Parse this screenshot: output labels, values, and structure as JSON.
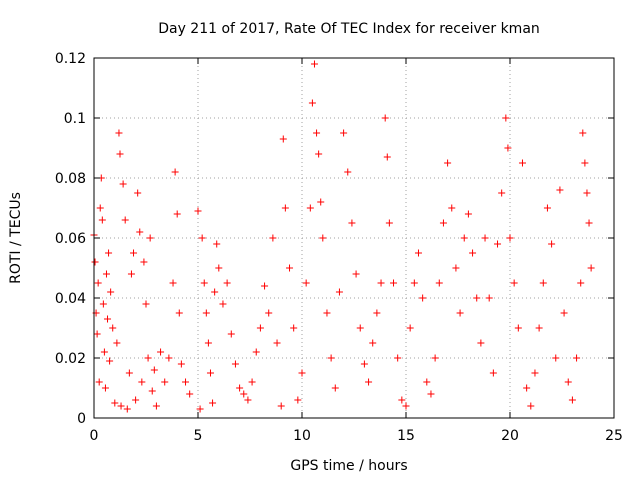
{
  "chart_data": {
    "type": "scatter",
    "title": "Day 211 of 2017, Rate Of TEC Index for receiver kman",
    "xlabel": "GPS time / hours",
    "ylabel": "ROTI / TECUs",
    "xlim": [
      0,
      25
    ],
    "ylim": [
      0,
      0.12
    ],
    "xticks": [
      0,
      5,
      10,
      15,
      20,
      25
    ],
    "yticks": [
      0,
      0.02,
      0.04,
      0.06,
      0.08,
      0.1,
      0.12
    ],
    "xtick_labels": [
      "0",
      "5",
      "10",
      "15",
      "20",
      "25"
    ],
    "ytick_labels": [
      "0",
      "0.02",
      "0.04",
      "0.06",
      "0.08",
      "0.1",
      "0.12"
    ],
    "grid": true,
    "marker": "+",
    "color": "#ff0000",
    "series": [
      {
        "points": [
          [
            0.0,
            0.061
          ],
          [
            0.05,
            0.052
          ],
          [
            0.1,
            0.035
          ],
          [
            0.15,
            0.028
          ],
          [
            0.2,
            0.045
          ],
          [
            0.25,
            0.012
          ],
          [
            0.3,
            0.07
          ],
          [
            0.35,
            0.08
          ],
          [
            0.4,
            0.066
          ],
          [
            0.45,
            0.038
          ],
          [
            0.5,
            0.022
          ],
          [
            0.55,
            0.01
          ],
          [
            0.6,
            0.048
          ],
          [
            0.65,
            0.033
          ],
          [
            0.7,
            0.055
          ],
          [
            0.75,
            0.019
          ],
          [
            0.8,
            0.042
          ],
          [
            0.9,
            0.03
          ],
          [
            1.0,
            0.005
          ],
          [
            1.1,
            0.025
          ],
          [
            1.2,
            0.095
          ],
          [
            1.25,
            0.088
          ],
          [
            1.3,
            0.004
          ],
          [
            1.4,
            0.078
          ],
          [
            1.5,
            0.066
          ],
          [
            1.6,
            0.003
          ],
          [
            1.7,
            0.015
          ],
          [
            1.8,
            0.048
          ],
          [
            1.9,
            0.055
          ],
          [
            2.0,
            0.006
          ],
          [
            2.1,
            0.075
          ],
          [
            2.2,
            0.062
          ],
          [
            2.3,
            0.012
          ],
          [
            2.4,
            0.052
          ],
          [
            2.5,
            0.038
          ],
          [
            2.6,
            0.02
          ],
          [
            2.7,
            0.06
          ],
          [
            2.8,
            0.009
          ],
          [
            2.9,
            0.016
          ],
          [
            3.0,
            0.004
          ],
          [
            3.2,
            0.022
          ],
          [
            3.4,
            0.012
          ],
          [
            3.6,
            0.02
          ],
          [
            3.8,
            0.045
          ],
          [
            3.9,
            0.082
          ],
          [
            4.0,
            0.068
          ],
          [
            4.1,
            0.035
          ],
          [
            4.2,
            0.018
          ],
          [
            4.4,
            0.012
          ],
          [
            4.6,
            0.008
          ],
          [
            5.0,
            0.069
          ],
          [
            5.1,
            0.003
          ],
          [
            5.2,
            0.06
          ],
          [
            5.3,
            0.045
          ],
          [
            5.4,
            0.035
          ],
          [
            5.5,
            0.025
          ],
          [
            5.6,
            0.015
          ],
          [
            5.7,
            0.005
          ],
          [
            5.8,
            0.042
          ],
          [
            5.9,
            0.058
          ],
          [
            6.0,
            0.05
          ],
          [
            6.2,
            0.038
          ],
          [
            6.4,
            0.045
          ],
          [
            6.6,
            0.028
          ],
          [
            6.8,
            0.018
          ],
          [
            7.0,
            0.01
          ],
          [
            7.2,
            0.008
          ],
          [
            7.4,
            0.006
          ],
          [
            7.6,
            0.012
          ],
          [
            7.8,
            0.022
          ],
          [
            8.0,
            0.03
          ],
          [
            8.2,
            0.044
          ],
          [
            8.4,
            0.035
          ],
          [
            8.6,
            0.06
          ],
          [
            8.8,
            0.025
          ],
          [
            9.0,
            0.004
          ],
          [
            9.1,
            0.093
          ],
          [
            9.2,
            0.07
          ],
          [
            9.4,
            0.05
          ],
          [
            9.6,
            0.03
          ],
          [
            9.8,
            0.006
          ],
          [
            10.0,
            0.015
          ],
          [
            10.2,
            0.045
          ],
          [
            10.4,
            0.07
          ],
          [
            10.5,
            0.105
          ],
          [
            10.6,
            0.118
          ],
          [
            10.7,
            0.095
          ],
          [
            10.8,
            0.088
          ],
          [
            10.9,
            0.072
          ],
          [
            11.0,
            0.06
          ],
          [
            11.2,
            0.035
          ],
          [
            11.4,
            0.02
          ],
          [
            11.6,
            0.01
          ],
          [
            11.8,
            0.042
          ],
          [
            12.0,
            0.095
          ],
          [
            12.2,
            0.082
          ],
          [
            12.4,
            0.065
          ],
          [
            12.6,
            0.048
          ],
          [
            12.8,
            0.03
          ],
          [
            13.0,
            0.018
          ],
          [
            13.2,
            0.012
          ],
          [
            13.4,
            0.025
          ],
          [
            13.6,
            0.035
          ],
          [
            13.8,
            0.045
          ],
          [
            14.0,
            0.1
          ],
          [
            14.1,
            0.087
          ],
          [
            14.2,
            0.065
          ],
          [
            14.4,
            0.045
          ],
          [
            14.6,
            0.02
          ],
          [
            14.8,
            0.006
          ],
          [
            15.0,
            0.004
          ],
          [
            15.2,
            0.03
          ],
          [
            15.4,
            0.045
          ],
          [
            15.6,
            0.055
          ],
          [
            15.8,
            0.04
          ],
          [
            16.0,
            0.012
          ],
          [
            16.2,
            0.008
          ],
          [
            16.4,
            0.02
          ],
          [
            16.6,
            0.045
          ],
          [
            16.8,
            0.065
          ],
          [
            17.0,
            0.085
          ],
          [
            17.2,
            0.07
          ],
          [
            17.4,
            0.05
          ],
          [
            17.6,
            0.035
          ],
          [
            17.8,
            0.06
          ],
          [
            18.0,
            0.068
          ],
          [
            18.2,
            0.055
          ],
          [
            18.4,
            0.04
          ],
          [
            18.6,
            0.025
          ],
          [
            18.8,
            0.06
          ],
          [
            19.0,
            0.04
          ],
          [
            19.2,
            0.015
          ],
          [
            19.4,
            0.058
          ],
          [
            19.6,
            0.075
          ],
          [
            19.8,
            0.1
          ],
          [
            19.9,
            0.09
          ],
          [
            20.0,
            0.06
          ],
          [
            20.2,
            0.045
          ],
          [
            20.4,
            0.03
          ],
          [
            20.6,
            0.085
          ],
          [
            20.8,
            0.01
          ],
          [
            21.0,
            0.004
          ],
          [
            21.2,
            0.015
          ],
          [
            21.4,
            0.03
          ],
          [
            21.6,
            0.045
          ],
          [
            21.8,
            0.07
          ],
          [
            22.0,
            0.058
          ],
          [
            22.2,
            0.02
          ],
          [
            22.4,
            0.076
          ],
          [
            22.6,
            0.035
          ],
          [
            22.8,
            0.012
          ],
          [
            23.0,
            0.006
          ],
          [
            23.2,
            0.02
          ],
          [
            23.4,
            0.045
          ],
          [
            23.5,
            0.095
          ],
          [
            23.6,
            0.085
          ],
          [
            23.7,
            0.075
          ],
          [
            23.8,
            0.065
          ],
          [
            23.9,
            0.05
          ]
        ]
      }
    ]
  }
}
